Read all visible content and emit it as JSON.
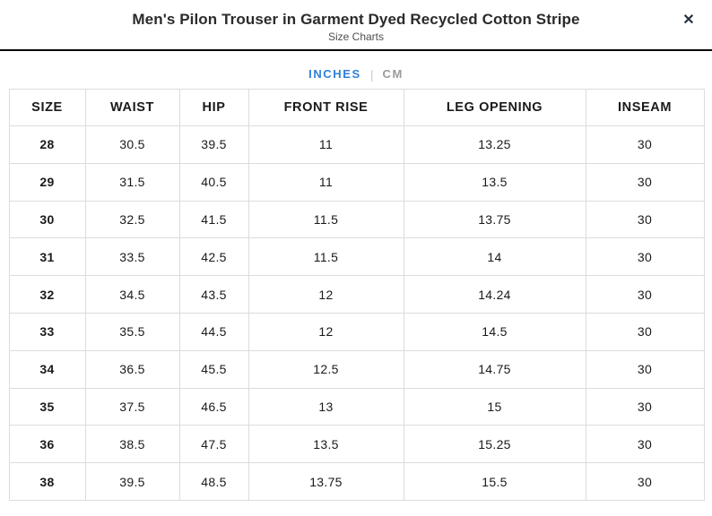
{
  "modal": {
    "title": "Men's Pilon Trouser in Garment Dyed Recycled Cotton Stripe",
    "subtitle": "Size Charts",
    "close_icon": "✕"
  },
  "tabs": {
    "separator": "|",
    "items": [
      {
        "label": "INCHES",
        "active": true
      },
      {
        "label": "CM",
        "active": false
      }
    ]
  },
  "colors": {
    "active_tab_blue": "#2F80D7",
    "inactive_tab_gray": "#9B9B9B",
    "header_divider": "#000000",
    "table_border": "#DCDCDC",
    "text": "#1A1A1A"
  },
  "table": {
    "columns": [
      "SIZE",
      "WAIST",
      "HIP",
      "FRONT RISE",
      "LEG OPENING",
      "INSEAM"
    ],
    "rows": [
      [
        "28",
        "30.5",
        "39.5",
        "11",
        "13.25",
        "30"
      ],
      [
        "29",
        "31.5",
        "40.5",
        "11",
        "13.5",
        "30"
      ],
      [
        "30",
        "32.5",
        "41.5",
        "11.5",
        "13.75",
        "30"
      ],
      [
        "31",
        "33.5",
        "42.5",
        "11.5",
        "14",
        "30"
      ],
      [
        "32",
        "34.5",
        "43.5",
        "12",
        "14.24",
        "30"
      ],
      [
        "33",
        "35.5",
        "44.5",
        "12",
        "14.5",
        "30"
      ],
      [
        "34",
        "36.5",
        "45.5",
        "12.5",
        "14.75",
        "30"
      ],
      [
        "35",
        "37.5",
        "46.5",
        "13",
        "15",
        "30"
      ],
      [
        "36",
        "38.5",
        "47.5",
        "13.5",
        "15.25",
        "30"
      ],
      [
        "38",
        "39.5",
        "48.5",
        "13.75",
        "15.5",
        "30"
      ]
    ]
  }
}
